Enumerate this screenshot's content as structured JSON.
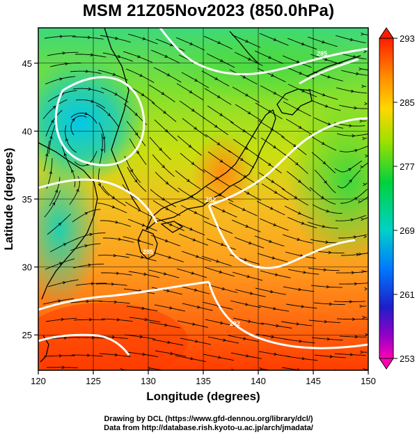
{
  "title": "MSM 21Z05Nov2023 (850.0hPa)",
  "xlabel": "Longitude (degrees)",
  "ylabel": "Latitude  (degrees)",
  "x_ticks": [
    "120",
    "125",
    "130",
    "135",
    "140",
    "145",
    "150"
  ],
  "y_ticks": [
    "25",
    "30",
    "35",
    "40",
    "45"
  ],
  "colorbar": {
    "ticks": [
      "293",
      "285",
      "277",
      "269",
      "261",
      "253"
    ],
    "min": 253,
    "max": 293
  },
  "contour_labels": [
    "285",
    "285",
    "282",
    "282"
  ],
  "credits": {
    "line1": "Drawing by DCL (https://www.gfd-dennou.org/library/dcl/)",
    "line2": "Data from http://database.rish.kyoto-u.ac.jp/arch/jmadata/"
  },
  "colors": {
    "cold": "#00c8ff",
    "mid": "#40dc20",
    "warm": "#ffa020",
    "hot": "#ff3000",
    "contour": "#ffffff",
    "stream": "#000000"
  },
  "chart_data": {
    "type": "heatmap",
    "title": "MSM 21Z05Nov2023 (850.0hPa)",
    "xlabel": "Longitude (degrees)",
    "ylabel": "Latitude  (degrees)",
    "xlim": [
      120,
      150
    ],
    "ylim": [
      22.4,
      47.6
    ],
    "x_ticks": [
      120,
      125,
      130,
      135,
      140,
      145,
      150
    ],
    "y_ticks": [
      25,
      30,
      35,
      40,
      45
    ],
    "colorbar_range": [
      253,
      293
    ],
    "colorbar_ticks": [
      293,
      285,
      277,
      269,
      261,
      253
    ],
    "overlays": [
      "streamlines",
      "isotherm contours",
      "coastlines",
      "lat-lon grid"
    ]
  }
}
